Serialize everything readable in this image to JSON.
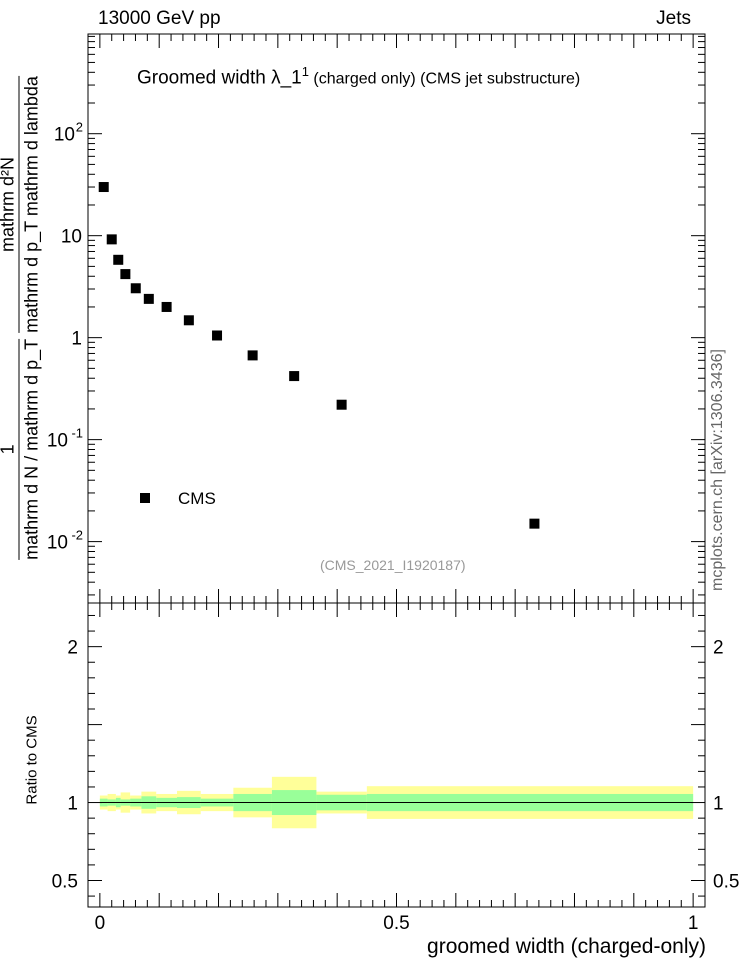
{
  "header": {
    "energy_label": "13000 GeV pp",
    "process_label": "Jets",
    "side_label": "mcplots.cern.ch [arXiv:1306.3436]"
  },
  "title": {
    "main": "Groomed width  λ_1",
    "superscript": "1",
    "suffix": " (charged only) (CMS jet substructure)"
  },
  "analysis_id": "(CMS_2021_I1920187)",
  "y_label_main": "1 / mathrm d N / mathrm d p_T  mathrm d² N / mathrm d p_T mathrm d lambda",
  "y_label_main_parts": {
    "numerator": "mathrm d²N",
    "numerator_denominator": "mathrm d p_T mathrm d lambda",
    "prefix": "1",
    "prefix_denominator": "mathrm d N / mathrm d p_T"
  },
  "y_label_ratio": "Ratio to CMS",
  "x_label": "groomed width (charged-only)",
  "legend": [
    {
      "name": "CMS",
      "marker": "square",
      "color": "#000000"
    }
  ],
  "chart_data": [
    {
      "type": "scatter",
      "panel": "main",
      "title": "Groomed width λ_1^1 (charged only) (CMS jet substructure)",
      "xlabel": "groomed width (charged-only)",
      "ylabel": "1/(dN/dp_T) d²N/(dp_T dλ)",
      "yscale": "log",
      "xlim": [
        -0.02,
        1.02
      ],
      "ylim": [
        0.0025,
        950
      ],
      "x_ticks": [
        0,
        0.5,
        1
      ],
      "x_tick_labels": [
        "0",
        "0.5",
        "1"
      ],
      "y_ticks": [
        0.01,
        0.1,
        1,
        10,
        100
      ],
      "y_tick_labels": [
        "10^-2",
        "10^-1",
        "1",
        "10",
        "10^2"
      ],
      "series": [
        {
          "name": "CMS",
          "x": [
            0.0065,
            0.02,
            0.031,
            0.043,
            0.0605,
            0.0825,
            0.1125,
            0.15,
            0.1975,
            0.2575,
            0.3275,
            0.4075,
            0.7325
          ],
          "y": [
            30,
            9.2,
            5.8,
            4.2,
            3.05,
            2.4,
            2.0,
            1.48,
            1.05,
            0.67,
            0.42,
            0.22,
            0.015
          ]
        }
      ]
    },
    {
      "type": "area",
      "panel": "ratio",
      "ylabel": "Ratio to CMS",
      "xlim": [
        -0.02,
        1.02
      ],
      "ylim": [
        0.33,
        2.28
      ],
      "y_ticks": [
        0.5,
        1,
        2
      ],
      "y_tick_labels": [
        "0.5",
        "1",
        "2"
      ],
      "bins": [
        {
          "lo": 0.0,
          "hi": 0.013,
          "stat": 0.025,
          "total": 0.045
        },
        {
          "lo": 0.013,
          "hi": 0.027,
          "stat": 0.02,
          "total": 0.055
        },
        {
          "lo": 0.027,
          "hi": 0.035,
          "stat": 0.03,
          "total": 0.045
        },
        {
          "lo": 0.035,
          "hi": 0.051,
          "stat": 0.02,
          "total": 0.065
        },
        {
          "lo": 0.051,
          "hi": 0.07,
          "stat": 0.025,
          "total": 0.045
        },
        {
          "lo": 0.07,
          "hi": 0.095,
          "stat": 0.04,
          "total": 0.07
        },
        {
          "lo": 0.095,
          "hi": 0.13,
          "stat": 0.03,
          "total": 0.055
        },
        {
          "lo": 0.13,
          "hi": 0.17,
          "stat": 0.035,
          "total": 0.075
        },
        {
          "lo": 0.17,
          "hi": 0.225,
          "stat": 0.025,
          "total": 0.055
        },
        {
          "lo": 0.225,
          "hi": 0.29,
          "stat": 0.055,
          "total": 0.095
        },
        {
          "lo": 0.29,
          "hi": 0.365,
          "stat": 0.08,
          "total": 0.165
        },
        {
          "lo": 0.365,
          "hi": 0.45,
          "stat": 0.05,
          "total": 0.07
        },
        {
          "lo": 0.45,
          "hi": 1.0,
          "stat": 0.055,
          "total": 0.105
        }
      ],
      "stat_color": "#99ff99",
      "total_color": "#ffff99"
    }
  ],
  "colors": {
    "marker": "#000000",
    "band_stat": "#99ff99",
    "band_total": "#ffff99",
    "annotation_grey": "#999999",
    "side_label_grey": "#666666"
  }
}
